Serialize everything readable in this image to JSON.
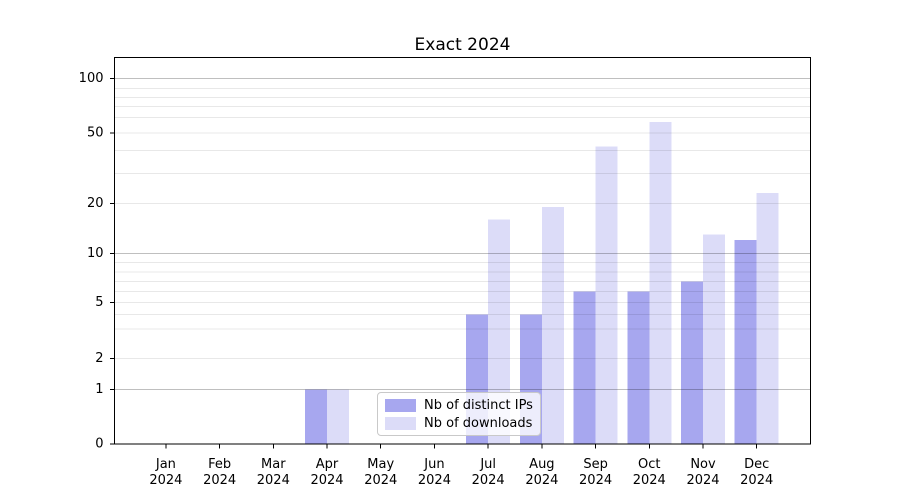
{
  "chart_data": {
    "type": "bar",
    "title": "Exact 2024",
    "categories": [
      "Jan 2024",
      "Feb 2024",
      "Mar 2024",
      "Apr 2024",
      "May 2024",
      "Jun 2024",
      "Jul 2024",
      "Aug 2024",
      "Sep 2024",
      "Oct 2024",
      "Nov 2024",
      "Dec 2024"
    ],
    "series": [
      {
        "name": "Nb of distinct IPs",
        "color": "#a7a7ef",
        "values": [
          0,
          0,
          0,
          1,
          0,
          0,
          4,
          4,
          6,
          6,
          7,
          12
        ]
      },
      {
        "name": "Nb of downloads",
        "color": "#dcdcf8",
        "values": [
          0,
          0,
          0,
          1,
          0,
          0,
          16,
          19,
          42,
          57,
          13,
          23
        ]
      }
    ],
    "y_axis": {
      "scale": "log-like",
      "tick_labels": [
        0,
        1,
        2,
        5,
        10,
        20,
        50,
        100
      ],
      "major_gridlines": [
        1,
        10,
        100
      ],
      "minor_gridlines": [
        2,
        3,
        4,
        5,
        6,
        7,
        8,
        9,
        20,
        30,
        40,
        50,
        60,
        70,
        80,
        90
      ],
      "range": [
        0,
        133
      ]
    },
    "x_axis": {
      "tick_label_line2": "2024"
    },
    "grid": true,
    "legend": {
      "position": "lower-center-inside",
      "items": [
        "Nb of distinct IPs",
        "Nb of downloads"
      ]
    }
  },
  "colors": {
    "distinct_ips": "#a7a7ef",
    "downloads": "#dcdcf8",
    "axis": "#000000",
    "text": "#000000",
    "grid_major": "rgba(0,0,0,0.25)",
    "grid_minor": "rgba(0,0,0,0.09)",
    "legend_border": "#c9c9c9",
    "background": "#ffffff"
  }
}
